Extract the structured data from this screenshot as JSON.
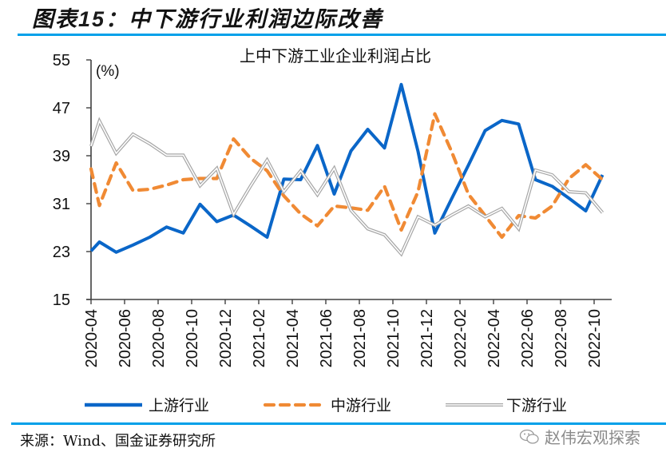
{
  "figure": {
    "title_prefix": "图表",
    "title_number": "15：",
    "title_text": "中下游行业利润边际改善",
    "source": "来源：Wind、国金证券研究所",
    "watermark": "赵伟宏观探索",
    "watermark_icon": "wechat-icon"
  },
  "colors": {
    "accent_rule": "#00a0e9",
    "upstream": "#0a66c8",
    "midstream": "#f08a34",
    "downstream": "#a6a6a6",
    "axis": "#404040"
  },
  "chart_data": {
    "type": "line",
    "title": "上中下游工业企业利润占比",
    "ylabel": "(%)",
    "xlabel": "",
    "ylim": [
      15,
      55
    ],
    "yticks": [
      15,
      23,
      31,
      39,
      47,
      55
    ],
    "grid": false,
    "legend": "bottom",
    "x_tick_labels": [
      "2020-04",
      "2020-06",
      "2020-08",
      "2020-10",
      "2020-12",
      "2021-02",
      "2021-04",
      "2021-06",
      "2021-08",
      "2021-10",
      "2021-12",
      "2022-02",
      "2022-04",
      "2022-06",
      "2022-08",
      "2022-10"
    ],
    "x": [
      "2020-03",
      "2020-04",
      "2020-05",
      "2020-06",
      "2020-07",
      "2020-08",
      "2020-09",
      "2020-10",
      "2020-11",
      "2020-12",
      "2021-01",
      "2021-02",
      "2021-03",
      "2021-04",
      "2021-05",
      "2021-06",
      "2021-07",
      "2021-08",
      "2021-09",
      "2021-10",
      "2021-11",
      "2021-12",
      "2022-01",
      "2022-02",
      "2022-03",
      "2022-04",
      "2022-05",
      "2022-06",
      "2022-07",
      "2022-08",
      "2022-09",
      "2022-10"
    ],
    "series": [
      {
        "name": "上游行业",
        "style": "solid",
        "values": [
          23.1,
          24.6,
          22.9,
          24.1,
          25.4,
          27.1,
          26.1,
          30.9,
          28.0,
          29.1,
          27.3,
          25.4,
          35.1,
          35.0,
          40.7,
          32.6,
          39.8,
          43.4,
          40.3,
          50.9,
          39.7,
          26.1,
          31.8,
          37.4,
          43.2,
          44.9,
          44.3,
          35.0,
          33.9,
          31.9,
          29.8,
          35.8
        ]
      },
      {
        "name": "中游行业",
        "style": "dashed",
        "values": [
          36.8,
          30.7,
          37.8,
          33.2,
          33.4,
          34.1,
          35.0,
          35.2,
          35.2,
          41.8,
          38.6,
          36.5,
          32.3,
          29.3,
          27.3,
          30.6,
          30.3,
          29.9,
          33.9,
          26.6,
          33.0,
          46.0,
          39.7,
          32.6,
          29.0,
          25.4,
          29.0,
          28.6,
          30.6,
          35.2,
          37.5,
          35.0
        ]
      },
      {
        "name": "下游行业",
        "style": "double",
        "values": [
          40.6,
          44.8,
          39.4,
          42.6,
          41.0,
          39.1,
          39.1,
          34.0,
          36.9,
          29.2,
          33.9,
          38.3,
          33.0,
          36.5,
          32.5,
          36.9,
          29.9,
          26.8,
          25.8,
          22.6,
          28.8,
          27.4,
          29.1,
          30.6,
          28.8,
          30.2,
          26.8,
          36.6,
          35.8,
          33.0,
          32.8,
          29.5
        ]
      }
    ]
  }
}
